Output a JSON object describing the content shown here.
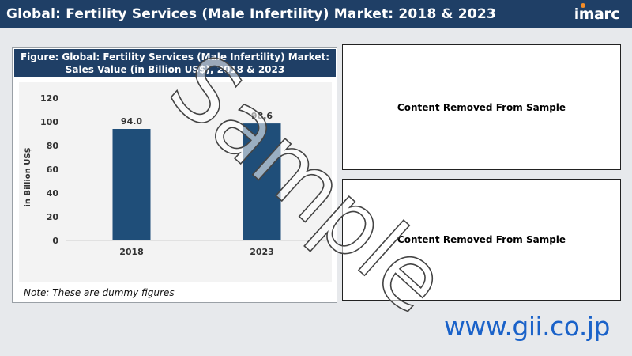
{
  "header": {
    "title": "Global: Fertility Services (Male Infertility) Market: 2018 & 2023",
    "brand": "imarc"
  },
  "chart_panel": {
    "title_line1": "Figure: Global: Fertility Services (Male Infertility) Market:",
    "title_line2": "Sales Value (in Billion US$), 2018 & 2023",
    "note": "Note: These are dummy figures"
  },
  "chart_data": {
    "type": "bar",
    "categories": [
      "2018",
      "2023"
    ],
    "values": [
      94.0,
      98.6
    ],
    "data_labels": [
      "94.0",
      "98.6"
    ],
    "title": "Figure: Global: Fertility Services (Male Infertility) Market: Sales Value (in Billion US$), 2018 & 2023",
    "xlabel": "",
    "ylabel": "in Billion US$",
    "ylim": [
      0,
      120
    ],
    "yticks": [
      0,
      20,
      40,
      60,
      80,
      100,
      120
    ],
    "grid": false,
    "bar_color": "#1f4e79"
  },
  "side_panels": {
    "top_text": "Content Removed From Sample",
    "bottom_text": "Content Removed From Sample"
  },
  "watermark": "Sample",
  "footer": {
    "url": "www.gii.co.jp"
  },
  "colors": {
    "header_bg": "#1f3f66",
    "accent_dot": "#f28c28",
    "url": "#1a62c9"
  }
}
